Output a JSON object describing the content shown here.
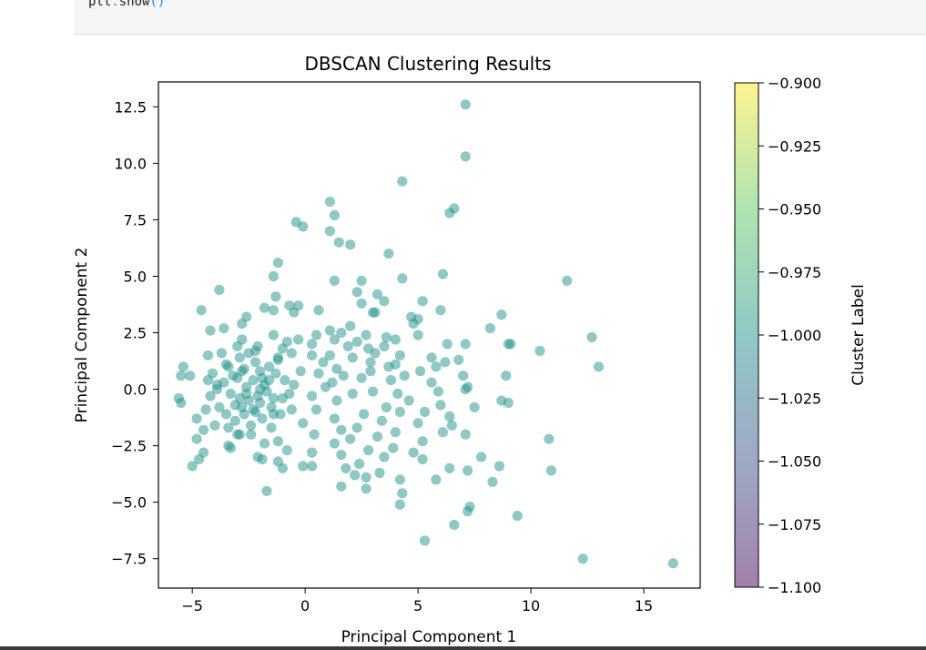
{
  "code": {
    "obj": "plt",
    "dot": ".",
    "func": "show",
    "parens": "()"
  },
  "colors": {
    "point": "#21918c",
    "code_background": "#f5f5f5"
  },
  "chart_data": {
    "type": "scatter",
    "title": "DBSCAN Clustering Results",
    "xlabel": "Principal Component 1",
    "ylabel": "Principal Component 2",
    "xlim": [
      -6.5,
      17.5
    ],
    "ylim": [
      -8.8,
      13.6
    ],
    "xticks": [
      -5,
      0,
      5,
      10,
      15
    ],
    "yticks": [
      -7.5,
      -5.0,
      -2.5,
      0.0,
      2.5,
      5.0,
      7.5,
      10.0,
      12.5
    ],
    "xtick_labels": [
      "−5",
      "0",
      "5",
      "10",
      "15"
    ],
    "ytick_labels": [
      "−7.5",
      "−5.0",
      "−2.5",
      "0.0",
      "2.5",
      "5.0",
      "7.5",
      "10.0",
      "12.5"
    ],
    "marker_alpha": 0.5,
    "colorbar": {
      "label": "Cluster Label",
      "colormap": "viridis",
      "range": [
        -1.1,
        -0.9
      ],
      "ticks": [
        -0.9,
        -0.925,
        -0.95,
        -0.975,
        -1.0,
        -1.025,
        -1.05,
        -1.075,
        -1.1
      ],
      "tick_labels": [
        "−0.900",
        "−0.925",
        "−0.950",
        "−0.975",
        "−1.000",
        "−1.025",
        "−1.050",
        "−1.075",
        "−1.100"
      ]
    },
    "series": [
      {
        "cluster": -1,
        "points": [
          [
            7.1,
            12.6
          ],
          [
            7.1,
            10.3
          ],
          [
            4.3,
            9.2
          ],
          [
            1.1,
            8.3
          ],
          [
            6.6,
            8.0
          ],
          [
            6.4,
            7.8
          ],
          [
            1.3,
            7.7
          ],
          [
            -0.4,
            7.4
          ],
          [
            -0.1,
            7.2
          ],
          [
            1.1,
            7.0
          ],
          [
            1.5,
            6.5
          ],
          [
            2.0,
            6.4
          ],
          [
            3.7,
            6.0
          ],
          [
            -1.2,
            5.6
          ],
          [
            6.1,
            5.1
          ],
          [
            -1.4,
            5.0
          ],
          [
            11.6,
            4.8
          ],
          [
            1.3,
            4.8
          ],
          [
            2.5,
            4.8
          ],
          [
            4.3,
            4.9
          ],
          [
            -3.8,
            4.4
          ],
          [
            2.3,
            4.3
          ],
          [
            3.2,
            4.2
          ],
          [
            -1.3,
            4.1
          ],
          [
            5.2,
            3.9
          ],
          [
            3.5,
            3.9
          ],
          [
            2.5,
            3.8
          ],
          [
            -0.3,
            3.7
          ],
          [
            -0.7,
            3.7
          ],
          [
            -1.8,
            3.6
          ],
          [
            -4.6,
            3.5
          ],
          [
            -1.4,
            3.5
          ],
          [
            0.6,
            3.5
          ],
          [
            -0.5,
            3.4
          ],
          [
            3.1,
            3.4
          ],
          [
            3.0,
            3.4
          ],
          [
            6.0,
            3.5
          ],
          [
            8.7,
            3.3
          ],
          [
            -2.6,
            3.2
          ],
          [
            4.7,
            3.2
          ],
          [
            5.0,
            3.1
          ],
          [
            4.8,
            2.9
          ],
          [
            -2.8,
            2.9
          ],
          [
            2.0,
            2.8
          ],
          [
            1.1,
            2.6
          ],
          [
            -3.6,
            2.7
          ],
          [
            8.2,
            2.7
          ],
          [
            -4.2,
            2.6
          ],
          [
            1.6,
            2.5
          ],
          [
            0.5,
            2.4
          ],
          [
            -1.4,
            2.4
          ],
          [
            2.7,
            2.4
          ],
          [
            5.0,
            2.4
          ],
          [
            12.7,
            2.3
          ],
          [
            3.6,
            2.3
          ],
          [
            -0.3,
            2.2
          ],
          [
            4.0,
            2.2
          ],
          [
            1.3,
            2.2
          ],
          [
            2.3,
            2.1
          ],
          [
            -0.8,
            2.1
          ],
          [
            7.1,
            2.0
          ],
          [
            9.0,
            2.0
          ],
          [
            9.1,
            2.0
          ],
          [
            6.3,
            2.0
          ],
          [
            0.3,
            2.0
          ],
          [
            1.9,
            1.9
          ],
          [
            3.5,
            1.9
          ],
          [
            -3.0,
            1.9
          ],
          [
            2.8,
            1.8
          ],
          [
            10.4,
            1.7
          ],
          [
            -2.2,
            1.7
          ],
          [
            -0.6,
            1.6
          ],
          [
            3.1,
            1.6
          ],
          [
            0.3,
            1.5
          ],
          [
            -4.3,
            1.5
          ],
          [
            1.1,
            1.5
          ],
          [
            4.2,
            1.5
          ],
          [
            -1.2,
            1.4
          ],
          [
            2.1,
            1.4
          ],
          [
            5.6,
            1.4
          ],
          [
            6.8,
            1.3
          ],
          [
            0.8,
            1.2
          ],
          [
            2.9,
            1.2
          ],
          [
            6.2,
            1.2
          ],
          [
            -3.5,
            1.1
          ],
          [
            4.0,
            1.1
          ],
          [
            -5.4,
            1.0
          ],
          [
            13.0,
            1.0
          ],
          [
            3.7,
            1.0
          ],
          [
            5.8,
            1.0
          ],
          [
            1.4,
            0.9
          ],
          [
            -0.2,
            0.8
          ],
          [
            5.1,
            0.8
          ],
          [
            2.9,
            0.8
          ],
          [
            -2.8,
            0.8
          ],
          [
            0.6,
            0.7
          ],
          [
            -4.1,
            0.7
          ],
          [
            -5.5,
            0.6
          ],
          [
            -5.1,
            0.6
          ],
          [
            1.7,
            0.6
          ],
          [
            4.4,
            0.6
          ],
          [
            7.0,
            0.6
          ],
          [
            8.9,
            0.6
          ],
          [
            2.5,
            0.5
          ],
          [
            3.8,
            0.4
          ],
          [
            -1.6,
            0.4
          ],
          [
            1.2,
            0.3
          ],
          [
            5.6,
            0.3
          ],
          [
            -0.5,
            0.2
          ],
          [
            -3.9,
            0.2
          ],
          [
            0.9,
            0.1
          ],
          [
            7.2,
            0.1
          ],
          [
            7.1,
            0.0
          ],
          [
            -2.0,
            0.0
          ],
          [
            3.0,
            -0.1
          ],
          [
            5.9,
            -0.1
          ],
          [
            4.1,
            -0.2
          ],
          [
            2.1,
            -0.2
          ],
          [
            0.3,
            -0.3
          ],
          [
            -4.2,
            -0.3
          ],
          [
            -5.6,
            -0.4
          ],
          [
            -1.0,
            -0.4
          ],
          [
            1.4,
            -0.5
          ],
          [
            4.6,
            -0.5
          ],
          [
            8.7,
            -0.5
          ],
          [
            9.0,
            -0.6
          ],
          [
            -5.5,
            -0.6
          ],
          [
            6.0,
            -0.7
          ],
          [
            -3.1,
            -0.7
          ],
          [
            7.5,
            -0.8
          ],
          [
            3.6,
            -0.8
          ],
          [
            0.5,
            -0.9
          ],
          [
            -2.3,
            -0.9
          ],
          [
            4.2,
            -1.0
          ],
          [
            5.3,
            -1.0
          ],
          [
            -1.4,
            -1.1
          ],
          [
            2.6,
            -1.1
          ],
          [
            6.4,
            -1.2
          ],
          [
            -4.8,
            -1.3
          ],
          [
            1.3,
            -1.3
          ],
          [
            3.4,
            -1.4
          ],
          [
            5.0,
            -1.5
          ],
          [
            -0.1,
            -1.5
          ],
          [
            6.5,
            -1.6
          ],
          [
            -3.4,
            -1.7
          ],
          [
            2.3,
            -1.7
          ],
          [
            -4.5,
            -1.8
          ],
          [
            1.6,
            -1.8
          ],
          [
            4.0,
            -1.9
          ],
          [
            6.1,
            -1.9
          ],
          [
            -2.9,
            -2.0
          ],
          [
            7.1,
            -2.0
          ],
          [
            0.4,
            -2.0
          ],
          [
            3.2,
            -2.1
          ],
          [
            -4.8,
            -2.2
          ],
          [
            10.8,
            -2.2
          ],
          [
            2.0,
            -2.2
          ],
          [
            5.2,
            -2.3
          ],
          [
            -1.2,
            -2.3
          ],
          [
            1.3,
            -2.4
          ],
          [
            -3.4,
            -2.5
          ],
          [
            3.9,
            -2.6
          ],
          [
            -0.8,
            -2.7
          ],
          [
            2.8,
            -2.7
          ],
          [
            -4.5,
            -2.8
          ],
          [
            0.3,
            -2.8
          ],
          [
            4.8,
            -2.8
          ],
          [
            1.6,
            -2.9
          ],
          [
            -2.1,
            -3.0
          ],
          [
            3.5,
            -3.0
          ],
          [
            7.8,
            -3.0
          ],
          [
            -4.7,
            -3.1
          ],
          [
            -1.9,
            -3.1
          ],
          [
            5.2,
            -3.1
          ],
          [
            -1.2,
            -3.2
          ],
          [
            2.4,
            -3.3
          ],
          [
            -5.0,
            -3.4
          ],
          [
            -0.1,
            -3.4
          ],
          [
            0.3,
            -3.4
          ],
          [
            8.6,
            -3.4
          ],
          [
            -1.0,
            -3.5
          ],
          [
            1.8,
            -3.5
          ],
          [
            6.4,
            -3.5
          ],
          [
            7.2,
            -3.6
          ],
          [
            10.9,
            -3.6
          ],
          [
            3.3,
            -3.7
          ],
          [
            2.2,
            -3.8
          ],
          [
            2.7,
            -3.9
          ],
          [
            4.2,
            -4.0
          ],
          [
            5.8,
            -4.0
          ],
          [
            8.3,
            -4.1
          ],
          [
            1.6,
            -4.3
          ],
          [
            2.7,
            -4.4
          ],
          [
            -1.7,
            -4.5
          ],
          [
            4.3,
            -4.6
          ],
          [
            4.2,
            -5.1
          ],
          [
            7.3,
            -5.2
          ],
          [
            7.2,
            -5.4
          ],
          [
            9.4,
            -5.6
          ],
          [
            6.6,
            -6.0
          ],
          [
            5.3,
            -6.7
          ],
          [
            12.3,
            -7.5
          ],
          [
            16.3,
            -7.7
          ],
          [
            -3.0,
            0.5
          ],
          [
            -2.5,
            -0.5
          ],
          [
            -1.8,
            0.2
          ],
          [
            -2.2,
            1.2
          ],
          [
            -3.3,
            -0.2
          ],
          [
            -2.7,
            -1.1
          ],
          [
            -1.5,
            -0.8
          ],
          [
            -2.0,
            0.8
          ],
          [
            -3.6,
            0.3
          ],
          [
            -2.4,
            -1.6
          ],
          [
            -1.9,
            -1.3
          ],
          [
            -2.9,
            1.4
          ],
          [
            -3.8,
            -0.8
          ],
          [
            -1.3,
            0.7
          ],
          [
            -2.6,
            0.1
          ],
          [
            -2.1,
            -0.3
          ],
          [
            -3.1,
            -1.4
          ],
          [
            -1.6,
            1.0
          ],
          [
            -3.4,
            1.0
          ],
          [
            -2.3,
            0.4
          ],
          [
            -2.8,
            -0.8
          ],
          [
            -1.7,
            -0.1
          ],
          [
            -2.0,
            -0.6
          ],
          [
            -3.5,
            -1.1
          ],
          [
            -2.5,
            1.6
          ],
          [
            -1.4,
            -0.4
          ],
          [
            -3.2,
            0.6
          ],
          [
            -2.7,
            0.9
          ],
          [
            -1.9,
            0.5
          ],
          [
            -2.2,
            -1.0
          ],
          [
            -3.9,
            0.0
          ],
          [
            -1.2,
            1.3
          ],
          [
            -2.6,
            -0.2
          ],
          [
            -2.4,
            -2.0
          ],
          [
            -1.5,
            -1.7
          ],
          [
            -3.0,
            -2.0
          ],
          [
            -4.0,
            -1.6
          ],
          [
            -1.1,
            -1.1
          ],
          [
            -2.9,
            -0.4
          ],
          [
            -2.1,
            1.9
          ],
          [
            -0.9,
            0.4
          ],
          [
            -0.7,
            -0.2
          ],
          [
            -3.7,
            1.6
          ],
          [
            -4.3,
            0.4
          ],
          [
            -4.4,
            -0.9
          ],
          [
            -1.0,
            1.8
          ],
          [
            -2.8,
            2.2
          ],
          [
            -1.8,
            -2.4
          ],
          [
            -3.3,
            -2.6
          ],
          [
            -0.6,
            -0.9
          ]
        ]
      }
    ]
  }
}
